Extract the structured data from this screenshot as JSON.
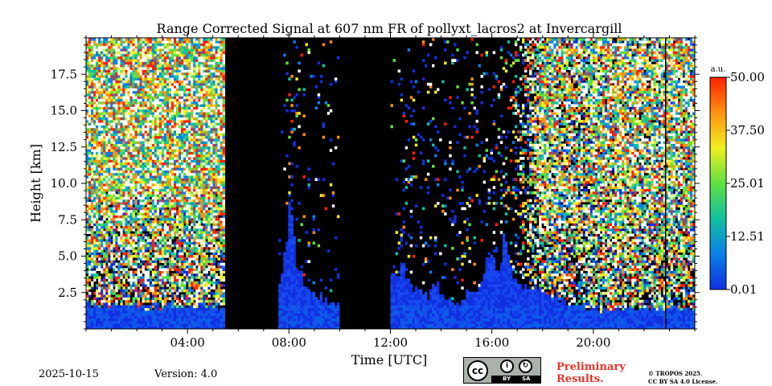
{
  "chart_data": {
    "type": "heatmap",
    "title": "Range Corrected Signal at 607 nm FR of pollyxt_lacros2 at Invercargill",
    "xlabel": "Time [UTC]",
    "ylabel": "Height [km]",
    "xlim_hours": [
      0,
      24
    ],
    "ylim_km": [
      0,
      20
    ],
    "x_ticks": [
      "04:00",
      "08:00",
      "12:00",
      "16:00",
      "20:00"
    ],
    "x_tick_hours": [
      4,
      8,
      12,
      16,
      20
    ],
    "y_ticks": [
      "2.5",
      "5.0",
      "7.5",
      "10.0",
      "12.5",
      "15.0",
      "17.5"
    ],
    "y_tick_values": [
      2.5,
      5.0,
      7.5,
      10.0,
      12.5,
      15.0,
      17.5
    ],
    "colorbar": {
      "unit": "a.u.",
      "ticks": [
        "0.01",
        "12.51",
        "25.01",
        "37.50",
        "50.00"
      ],
      "min": 0.01,
      "max": 50.0,
      "colors": [
        "#1030e0",
        "#0a80e8",
        "#10c0a0",
        "#60e040",
        "#f0f020",
        "#ff9010",
        "#ff2000"
      ]
    },
    "no_data_periods_hours": [
      [
        5.5,
        7.6
      ],
      [
        9.95,
        12.0
      ]
    ],
    "profile_hours": [
      0.0,
      0.25,
      0.5,
      0.75,
      1.0,
      1.25,
      1.5,
      1.75,
      2.0,
      2.25,
      2.5,
      2.75,
      3.0,
      3.25,
      3.5,
      3.75,
      4.0,
      4.25,
      4.5,
      4.75,
      5.0,
      5.25,
      5.5,
      7.6,
      7.75,
      8.0,
      8.25,
      8.5,
      8.75,
      9.0,
      9.25,
      9.5,
      9.75,
      9.95,
      12.0,
      12.25,
      12.5,
      12.75,
      13.0,
      13.25,
      13.5,
      13.75,
      14.0,
      14.25,
      14.5,
      14.75,
      15.0,
      15.25,
      15.5,
      15.75,
      16.0,
      16.25,
      16.5,
      16.75,
      17.0,
      17.25,
      17.5,
      17.75,
      18.0,
      18.25,
      18.5,
      18.75,
      19.0,
      19.25,
      19.5,
      19.75,
      20.0,
      20.25,
      20.5,
      20.75,
      21.0,
      21.25,
      21.5,
      21.75,
      22.0,
      22.25,
      22.5,
      22.75,
      23.0,
      23.25,
      23.5,
      23.75,
      24.0
    ],
    "signal_top_km": [
      1.6,
      1.7,
      1.5,
      1.6,
      1.5,
      1.6,
      1.5,
      1.4,
      1.6,
      1.5,
      1.5,
      1.6,
      1.5,
      1.6,
      1.5,
      1.6,
      1.5,
      1.4,
      1.6,
      1.5,
      1.6,
      1.5,
      1.5,
      3.0,
      3.5,
      8.5,
      5.0,
      3.5,
      3.0,
      2.5,
      2.2,
      2.0,
      1.9,
      1.8,
      4.0,
      3.5,
      4.5,
      3.0,
      2.5,
      3.0,
      2.0,
      3.5,
      2.5,
      2.0,
      1.8,
      1.5,
      2.5,
      2.2,
      3.0,
      4.0,
      5.0,
      4.0,
      6.0,
      4.5,
      3.5,
      2.5,
      2.5,
      3.0,
      2.5,
      2.2,
      2.5,
      2.0,
      1.8,
      1.5,
      1.6,
      1.4,
      1.5,
      1.3,
      1.4,
      1.5,
      1.3,
      1.4,
      1.5,
      1.3,
      1.4,
      1.5,
      1.4,
      1.3,
      1.4,
      1.5,
      1.4,
      1.3,
      1.4
    ],
    "noise_density": [
      1.0,
      1.0,
      1.0,
      1.0,
      1.0,
      1.0,
      1.0,
      1.0,
      1.0,
      1.0,
      1.0,
      1.0,
      1.0,
      1.0,
      1.0,
      1.0,
      1.0,
      1.0,
      1.0,
      1.0,
      1.0,
      1.0,
      1.0,
      0.0,
      0.0,
      0.06,
      0.06,
      0.05,
      0.04,
      0.03,
      0.03,
      0.03,
      0.03,
      0.02,
      0.02,
      0.03,
      0.03,
      0.03,
      0.03,
      0.03,
      0.03,
      0.04,
      0.04,
      0.04,
      0.04,
      0.05,
      0.05,
      0.06,
      0.06,
      0.07,
      0.08,
      0.1,
      0.12,
      0.15,
      0.2,
      0.3,
      0.5,
      0.7,
      0.9,
      0.9,
      0.85,
      0.8,
      0.8,
      0.8,
      0.8,
      0.8,
      0.85,
      0.9,
      0.9,
      0.9,
      0.9,
      0.9,
      0.9,
      0.9,
      0.9,
      0.9,
      0.9,
      0.9,
      0.9,
      0.9,
      0.9,
      0.9,
      0.9
    ],
    "vertical_marker_hour": 22.85
  },
  "footer": {
    "date": "2025-10-15",
    "version": "Version: 4.0",
    "preliminary_line1": "Preliminary",
    "preliminary_line2": "Results.",
    "copyright_line1": "© TROPOS 2025.",
    "copyright_line2": "CC BY SA 4.0 License.",
    "license_badge": {
      "cc": "cc",
      "by": "BY",
      "sa": "SA"
    }
  }
}
